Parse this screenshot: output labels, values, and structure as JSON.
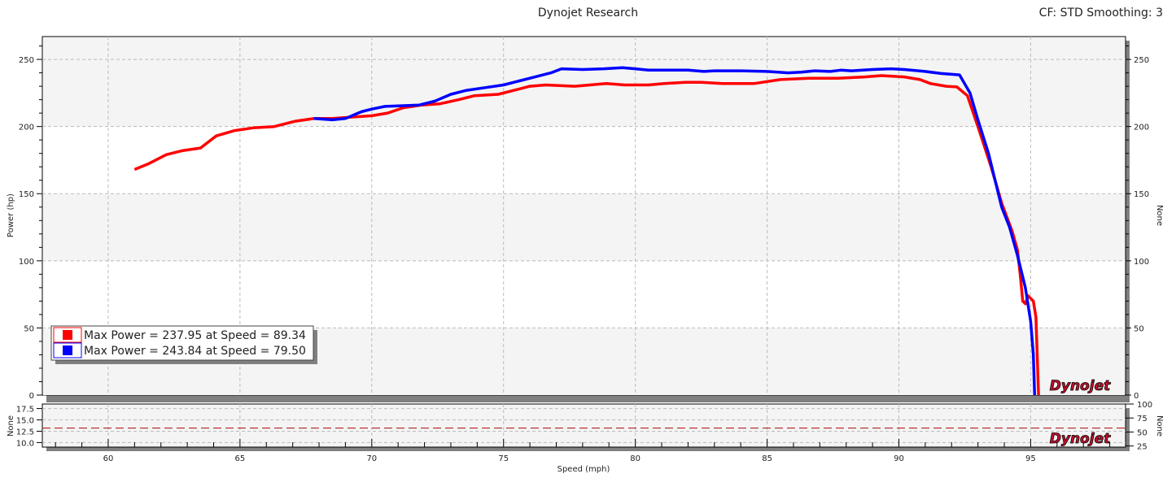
{
  "header": {
    "title": "Dynojet Research",
    "cf_info": "CF: STD Smoothing: 3"
  },
  "logo_text": "Dynojet",
  "colors": {
    "run1": "#ff0000",
    "run2": "#0000ff",
    "plot_bg": "#f4f4f4",
    "shadow": "#808080",
    "ref_line": "#b22222"
  },
  "chart_data": [
    {
      "type": "line",
      "xlabel": "Speed (mph)",
      "ylabel": "Power (hp)",
      "y2label": "None",
      "xlim": [
        57.5,
        98.6
      ],
      "ylim": [
        0,
        267
      ],
      "xticks": [
        60,
        65,
        70,
        75,
        80,
        85,
        90,
        95
      ],
      "yticks": [
        0,
        50,
        100,
        150,
        200,
        250
      ],
      "y2ticks": [
        0,
        50,
        100,
        150,
        200,
        250
      ],
      "grid": true,
      "legend_placement": "bottom-left",
      "legend": [
        "Max Power = 237.95 at Speed = 89.34",
        "Max Power = 243.84 at Speed = 79.50"
      ],
      "series": [
        {
          "color": "#ff0000",
          "x": [
            61.0,
            61.5,
            62.2,
            62.8,
            63.5,
            64.1,
            64.8,
            65.5,
            66.3,
            67.1,
            67.8,
            68.5,
            69.2,
            70.0,
            70.6,
            71.2,
            71.9,
            72.6,
            73.3,
            73.9,
            74.8,
            75.4,
            76.0,
            76.6,
            77.7,
            78.9,
            79.6,
            80.5,
            81.1,
            81.9,
            82.5,
            83.3,
            84.5,
            85.5,
            86.6,
            87.7,
            88.7,
            89.34,
            90.2,
            90.8,
            91.2,
            91.8,
            92.2,
            92.6,
            93.0,
            93.5,
            93.9,
            94.3,
            94.5,
            94.6,
            94.7,
            94.8,
            94.9,
            95.1,
            95.2,
            95.3
          ],
          "y": [
            168,
            172,
            179,
            182,
            184,
            193,
            197,
            199,
            200,
            204,
            206,
            206,
            207,
            208,
            210,
            214,
            216,
            217,
            220,
            223,
            224,
            227,
            230,
            231,
            230,
            232,
            231,
            231,
            232,
            233,
            233,
            232,
            232,
            235,
            236,
            236,
            237,
            237.95,
            237,
            235,
            232,
            230,
            229.5,
            223,
            200,
            170,
            143,
            122,
            108,
            90,
            70,
            68,
            74,
            70,
            58,
            0
          ]
        },
        {
          "color": "#0000ff",
          "x": [
            67.8,
            68.5,
            69.0,
            69.6,
            70.0,
            70.5,
            71.8,
            72.4,
            73.0,
            73.6,
            74.3,
            75.0,
            75.6,
            76.2,
            76.8,
            77.2,
            78.0,
            78.8,
            79.5,
            80.0,
            80.5,
            82.0,
            82.6,
            83.0,
            84.0,
            85.0,
            85.8,
            86.3,
            86.8,
            87.4,
            87.8,
            88.2,
            89.0,
            89.7,
            90.2,
            91.0,
            91.6,
            92.3,
            92.7,
            93.0,
            93.4,
            93.9,
            94.2,
            94.5,
            94.8,
            95.0,
            95.1,
            95.15
          ],
          "y": [
            206,
            205,
            206,
            211,
            213,
            215,
            216,
            219,
            224,
            227,
            229,
            231,
            234,
            237,
            240,
            243,
            242.5,
            243,
            243.84,
            243,
            242,
            242,
            241,
            241.5,
            241.5,
            241,
            240,
            240.5,
            241.5,
            241,
            242,
            241.5,
            242.5,
            243,
            242.5,
            241,
            239.5,
            238.5,
            225,
            205,
            180,
            140,
            125,
            104,
            80,
            55,
            30,
            0
          ]
        }
      ]
    },
    {
      "type": "line",
      "ylabel": "None",
      "y2label": "None",
      "xlim": [
        57.5,
        98.6
      ],
      "ylim": [
        9.0,
        18.5
      ],
      "yticks": [
        10.0,
        12.5,
        15.0,
        17.5
      ],
      "y2lim": [
        23,
        100
      ],
      "y2ticks": [
        25,
        50,
        75,
        100
      ],
      "grid": true,
      "reference_line": {
        "y": 13.2,
        "style": "dashed",
        "color": "#b22222"
      }
    }
  ]
}
